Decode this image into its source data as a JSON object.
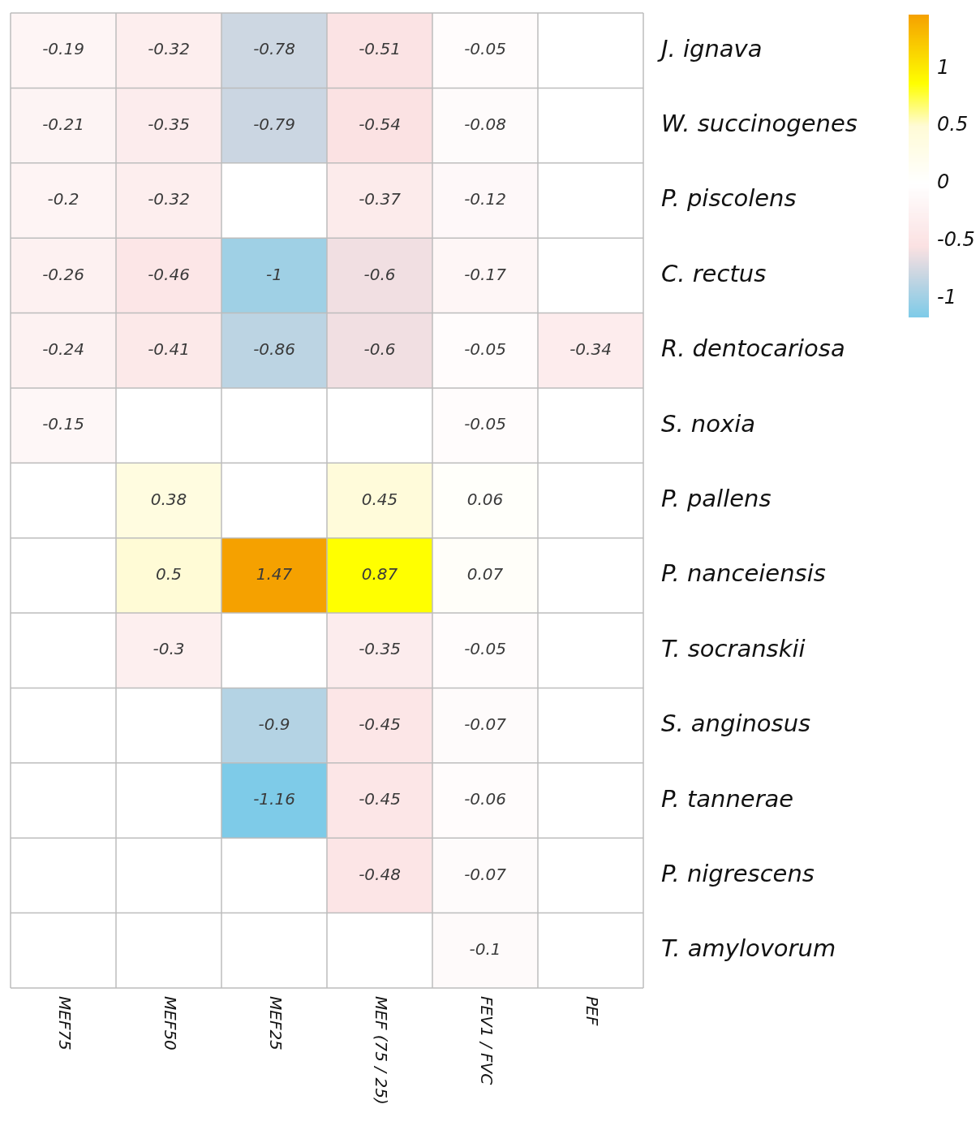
{
  "chart_data": {
    "type": "heatmap",
    "categories": [
      "MEF75",
      "MEF50",
      "MEF25",
      "MEF (75 / 25)",
      "FEV1 / FVC",
      "PEF"
    ],
    "y_categories": [
      "J. ignava",
      "W. succinogenes",
      "P. piscolens",
      "C. rectus",
      "R. dentocariosa",
      "S. noxia",
      "P. pallens",
      "P. nanceiensis",
      "T. socranskii",
      "S. anginosus",
      "P. tannerae",
      "P. nigrescens",
      "T. amylovorum"
    ],
    "cells": [
      [
        -0.19,
        -0.32,
        -0.78,
        -0.51,
        -0.05,
        null
      ],
      [
        -0.21,
        -0.35,
        -0.79,
        -0.54,
        -0.08,
        null
      ],
      [
        -0.2,
        -0.32,
        null,
        -0.37,
        -0.12,
        null
      ],
      [
        -0.26,
        -0.46,
        -1,
        -0.6,
        -0.17,
        null
      ],
      [
        -0.24,
        -0.41,
        -0.86,
        -0.6,
        -0.05,
        -0.34
      ],
      [
        -0.15,
        null,
        null,
        null,
        -0.05,
        null
      ],
      [
        null,
        0.38,
        null,
        0.45,
        0.06,
        null
      ],
      [
        null,
        0.5,
        1.47,
        0.87,
        0.07,
        null
      ],
      [
        null,
        -0.3,
        null,
        -0.35,
        -0.05,
        null
      ],
      [
        null,
        null,
        -0.9,
        -0.45,
        -0.07,
        null
      ],
      [
        null,
        null,
        -1.16,
        -0.45,
        -0.06,
        null
      ],
      [
        null,
        null,
        null,
        -0.48,
        -0.07,
        null
      ],
      [
        null,
        null,
        null,
        null,
        -0.1,
        null
      ]
    ],
    "clim": [
      -1.16,
      1.47
    ],
    "cticks": [
      -1,
      -0.5,
      0,
      0.5,
      1
    ],
    "data_labels": true
  }
}
